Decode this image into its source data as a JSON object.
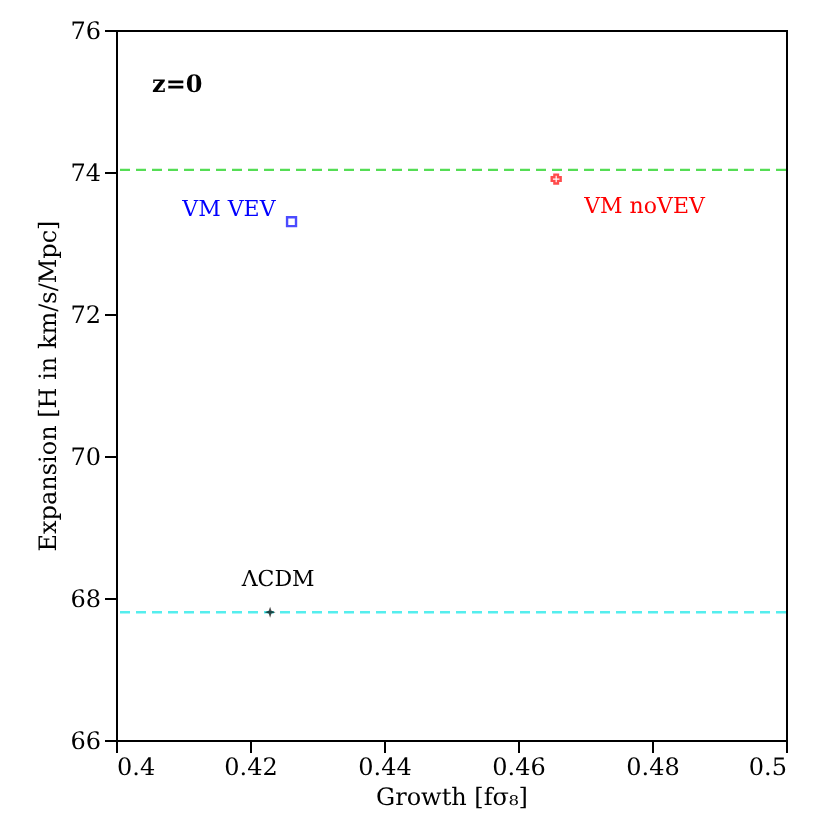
{
  "chart_data": {
    "type": "scatter",
    "xlabel": "Growth [fσ₈]",
    "ylabel": "Expansion [H in km/s/Mpc]",
    "annotations": [
      "z=0"
    ],
    "series": [
      {
        "name": "VM VEV",
        "color": "#0000ff",
        "marker": "square",
        "x": [
          0.4262
        ],
        "values": [
          73.3
        ]
      },
      {
        "name": "VM noVEV",
        "color": "#ff0000",
        "marker": "cross",
        "x": [
          0.4657
        ],
        "values": [
          73.9
        ]
      },
      {
        "name": "ΛCDM",
        "color": "#000000",
        "marker": "star",
        "x": [
          0.423
        ],
        "values": [
          67.8
        ]
      }
    ],
    "ref_lines": [
      {
        "axis": "y",
        "value": 74.03,
        "color": "#55dd55",
        "line_style": "dashed"
      },
      {
        "axis": "y",
        "value": 67.8,
        "color": "#55eeee",
        "line_style": "dashed"
      }
    ],
    "xlim": [
      0.4,
      0.5
    ],
    "ylim": [
      66,
      76
    ],
    "xticks": [
      0.4,
      0.42,
      0.44,
      0.46,
      0.48,
      0.5
    ],
    "yticks": [
      66,
      68,
      70,
      72,
      74,
      76
    ],
    "grid": false
  }
}
